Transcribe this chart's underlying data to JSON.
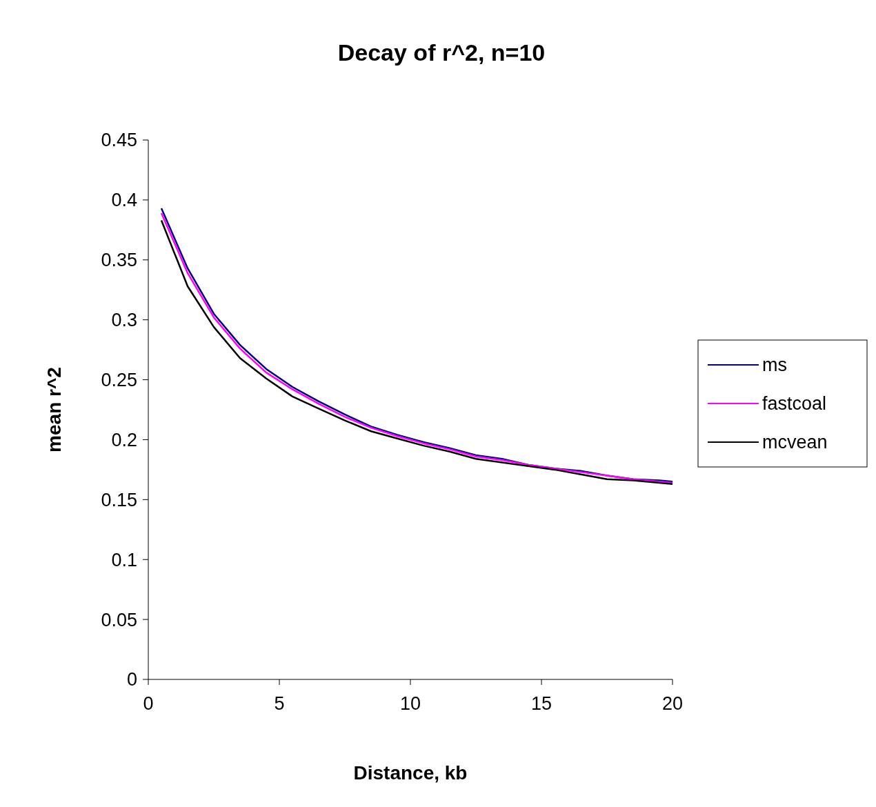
{
  "chart_data": {
    "type": "line",
    "title": "Decay of r^2, n=10",
    "xlabel": "Distance, kb",
    "ylabel": "mean r^2",
    "x": [
      0.5,
      1.5,
      2.5,
      3.5,
      4.5,
      5.5,
      6.5,
      7.5,
      8.5,
      9.5,
      10.5,
      11.5,
      12.5,
      13.5,
      14.5,
      15.5,
      16.5,
      17.5,
      18.5,
      19.5,
      20
    ],
    "series": [
      {
        "name": "ms",
        "color": "#000080",
        "values": [
          0.393,
          0.343,
          0.305,
          0.279,
          0.259,
          0.244,
          0.232,
          0.221,
          0.211,
          0.204,
          0.198,
          0.193,
          0.187,
          0.184,
          0.179,
          0.176,
          0.174,
          0.17,
          0.167,
          0.166,
          0.165
        ]
      },
      {
        "name": "fastcoal",
        "color": "#ff00ff",
        "values": [
          0.389,
          0.339,
          0.302,
          0.276,
          0.256,
          0.242,
          0.23,
          0.219,
          0.21,
          0.203,
          0.197,
          0.192,
          0.186,
          0.183,
          0.179,
          0.176,
          0.173,
          0.17,
          0.167,
          0.165,
          0.164
        ]
      },
      {
        "name": "mcvean",
        "color": "#000000",
        "values": [
          0.383,
          0.328,
          0.294,
          0.268,
          0.251,
          0.236,
          0.226,
          0.216,
          0.207,
          0.201,
          0.195,
          0.19,
          0.184,
          0.181,
          0.178,
          0.175,
          0.171,
          0.167,
          0.166,
          0.164,
          0.163
        ]
      }
    ],
    "xlim": [
      0,
      20
    ],
    "xticks": [
      0,
      5,
      10,
      15,
      20
    ],
    "ylim": [
      0,
      0.45
    ],
    "yticks": [
      0,
      0.05,
      0.1,
      0.15,
      0.2,
      0.25,
      0.3,
      0.35,
      0.4,
      0.45
    ],
    "grid": false,
    "legend": "right",
    "marker": "none",
    "line_style": "solid"
  }
}
